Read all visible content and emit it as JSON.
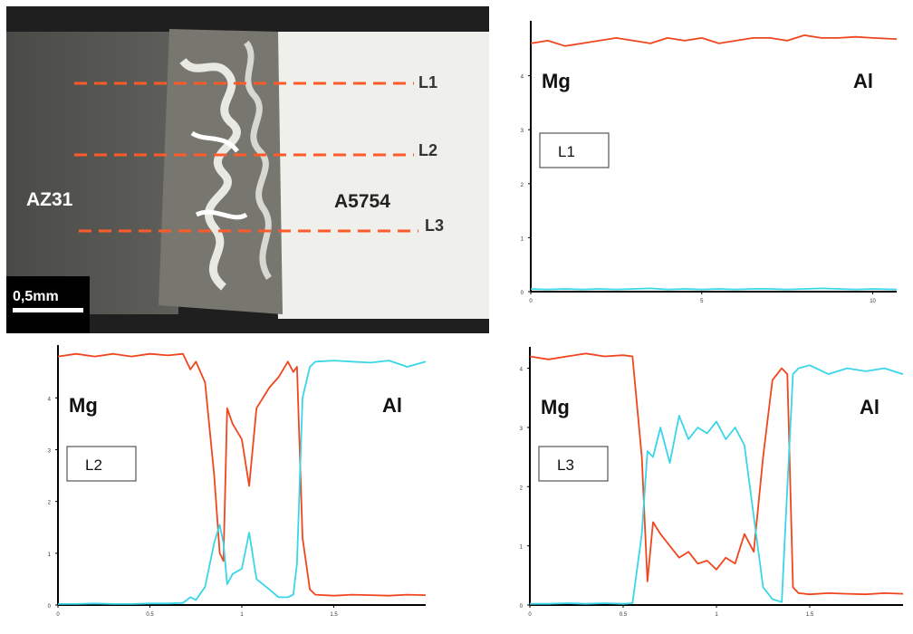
{
  "micrograph": {
    "material_left": "AZ31",
    "material_right": "A5754",
    "scale_bar": "0,5mm",
    "lines": [
      "L1",
      "L2",
      "L3"
    ],
    "colors": {
      "background": "#3d3d3b",
      "al_side": "#f0f0ee",
      "weld": "#6a6a66",
      "line": "#ff5a2a"
    }
  },
  "colors": {
    "mg": "#f0461e",
    "al": "#38d6e8"
  },
  "chart_data": [
    {
      "type": "line",
      "label_box": "L1",
      "x_ticks": [
        "0",
        "5",
        "10"
      ],
      "y_ticks": [
        "0",
        "1",
        "2",
        "3",
        "4"
      ],
      "xlim": [
        0,
        10.7
      ],
      "ylim": [
        0,
        4.95
      ],
      "series_labels": {
        "mg": "Mg",
        "al": "Al"
      },
      "series": [
        {
          "name": "Mg",
          "x": [
            0,
            0.5,
            1,
            1.5,
            2,
            2.5,
            3,
            3.5,
            4,
            4.5,
            5,
            5.5,
            6,
            6.5,
            7,
            7.5,
            8,
            8.5,
            9,
            9.5,
            10,
            10.7
          ],
          "values": [
            4.6,
            4.65,
            4.55,
            4.6,
            4.65,
            4.7,
            4.65,
            4.6,
            4.7,
            4.65,
            4.7,
            4.6,
            4.65,
            4.7,
            4.7,
            4.65,
            4.75,
            4.7,
            4.7,
            4.72,
            4.7,
            4.68
          ]
        },
        {
          "name": "Al",
          "x": [
            0,
            0.5,
            1,
            1.5,
            2,
            2.5,
            3,
            3.5,
            4,
            4.5,
            5,
            5.5,
            6,
            6.5,
            7,
            7.5,
            8,
            8.5,
            9,
            9.5,
            10,
            10.7
          ],
          "values": [
            0.05,
            0.04,
            0.05,
            0.04,
            0.05,
            0.04,
            0.05,
            0.06,
            0.04,
            0.05,
            0.04,
            0.05,
            0.04,
            0.05,
            0.05,
            0.04,
            0.05,
            0.06,
            0.05,
            0.04,
            0.05,
            0.04
          ]
        }
      ]
    },
    {
      "type": "line",
      "label_box": "L2",
      "x_ticks": [
        "0",
        "0.5",
        "1",
        "1.5"
      ],
      "y_ticks": [
        "0",
        "1",
        "2",
        "3",
        "4"
      ],
      "xlim": [
        0,
        2.0
      ],
      "ylim": [
        0,
        4.95
      ],
      "series_labels": {
        "mg": "Mg",
        "al": "Al"
      },
      "series": [
        {
          "name": "Mg",
          "x": [
            0,
            0.1,
            0.2,
            0.3,
            0.4,
            0.5,
            0.6,
            0.68,
            0.72,
            0.75,
            0.8,
            0.85,
            0.88,
            0.9,
            0.92,
            0.95,
            1.0,
            1.04,
            1.08,
            1.15,
            1.2,
            1.25,
            1.28,
            1.3,
            1.33,
            1.37,
            1.4,
            1.5,
            1.6,
            1.7,
            1.8,
            1.9,
            2.0
          ],
          "values": [
            4.8,
            4.85,
            4.8,
            4.85,
            4.8,
            4.85,
            4.82,
            4.85,
            4.55,
            4.7,
            4.3,
            2.5,
            1.0,
            0.85,
            3.8,
            3.5,
            3.2,
            2.3,
            3.8,
            4.2,
            4.4,
            4.7,
            4.5,
            4.6,
            1.3,
            0.3,
            0.2,
            0.18,
            0.2,
            0.19,
            0.18,
            0.2,
            0.19
          ]
        },
        {
          "name": "Al",
          "x": [
            0,
            0.1,
            0.2,
            0.3,
            0.4,
            0.5,
            0.6,
            0.68,
            0.72,
            0.75,
            0.8,
            0.85,
            0.88,
            0.9,
            0.92,
            0.95,
            1.0,
            1.04,
            1.08,
            1.15,
            1.2,
            1.25,
            1.28,
            1.3,
            1.33,
            1.37,
            1.4,
            1.5,
            1.6,
            1.7,
            1.8,
            1.9,
            2.0
          ],
          "values": [
            0.02,
            0.02,
            0.03,
            0.02,
            0.02,
            0.03,
            0.03,
            0.04,
            0.15,
            0.1,
            0.35,
            1.2,
            1.55,
            1.2,
            0.4,
            0.6,
            0.7,
            1.4,
            0.5,
            0.3,
            0.15,
            0.15,
            0.2,
            0.8,
            4.0,
            4.6,
            4.7,
            4.72,
            4.7,
            4.68,
            4.72,
            4.6,
            4.7
          ]
        }
      ]
    },
    {
      "type": "line",
      "label_box": "L3",
      "x_ticks": [
        "0",
        "0.5",
        "1",
        "1.5"
      ],
      "y_ticks": [
        "0",
        "1",
        "2",
        "3",
        "4"
      ],
      "xlim": [
        0,
        2.0
      ],
      "ylim": [
        0,
        4.3
      ],
      "series_labels": {
        "mg": "Mg",
        "al": "Al"
      },
      "series": [
        {
          "name": "Mg",
          "x": [
            0,
            0.1,
            0.2,
            0.3,
            0.4,
            0.5,
            0.55,
            0.6,
            0.63,
            0.66,
            0.7,
            0.75,
            0.8,
            0.85,
            0.9,
            0.95,
            1.0,
            1.05,
            1.1,
            1.15,
            1.2,
            1.25,
            1.3,
            1.35,
            1.38,
            1.41,
            1.44,
            1.5,
            1.6,
            1.7,
            1.8,
            1.9,
            2.0
          ],
          "values": [
            4.2,
            4.15,
            4.2,
            4.25,
            4.2,
            4.22,
            4.2,
            2.5,
            0.4,
            1.4,
            1.2,
            1.0,
            0.8,
            0.9,
            0.7,
            0.75,
            0.6,
            0.8,
            0.7,
            1.2,
            0.9,
            2.5,
            3.8,
            4.0,
            3.9,
            0.3,
            0.2,
            0.18,
            0.2,
            0.19,
            0.18,
            0.2,
            0.19
          ]
        },
        {
          "name": "Al",
          "x": [
            0,
            0.1,
            0.2,
            0.3,
            0.4,
            0.5,
            0.55,
            0.6,
            0.63,
            0.66,
            0.7,
            0.75,
            0.8,
            0.85,
            0.9,
            0.95,
            1.0,
            1.05,
            1.1,
            1.15,
            1.2,
            1.25,
            1.3,
            1.35,
            1.38,
            1.41,
            1.44,
            1.5,
            1.6,
            1.7,
            1.8,
            1.9,
            2.0
          ],
          "values": [
            0.02,
            0.02,
            0.03,
            0.02,
            0.03,
            0.02,
            0.03,
            1.2,
            2.6,
            2.5,
            3.0,
            2.4,
            3.2,
            2.8,
            3.0,
            2.9,
            3.1,
            2.8,
            3.0,
            2.7,
            1.5,
            0.3,
            0.1,
            0.05,
            2.0,
            3.9,
            4.0,
            4.05,
            3.9,
            4.0,
            3.95,
            4.0,
            3.9
          ]
        }
      ]
    }
  ]
}
